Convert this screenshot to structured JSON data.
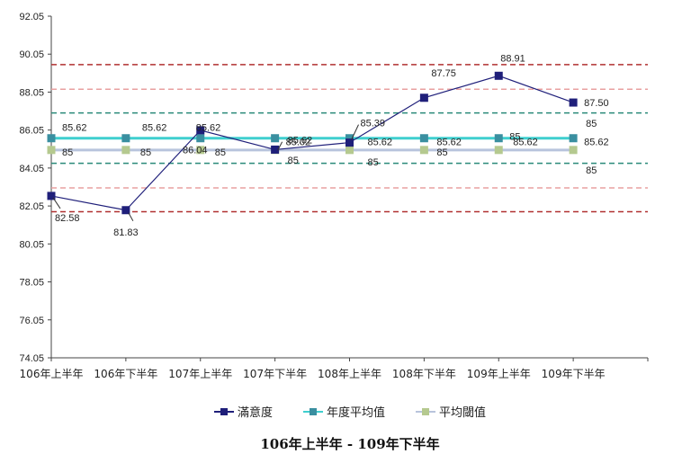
{
  "chart_data": {
    "type": "line",
    "categories": [
      "106年上半年",
      "106年下半年",
      "107年上半年",
      "107年下半年",
      "108年上半年",
      "108年下半年",
      "109年上半年",
      "109年下半年"
    ],
    "y_ticks": [
      "92.05",
      "90.05",
      "88.05",
      "86.05",
      "84.05",
      "82.05",
      "80.05",
      "78.05",
      "76.05",
      "74.05"
    ],
    "ylim": [
      74.05,
      92.05
    ],
    "series": [
      {
        "name": "滿意度",
        "values": [
          82.58,
          81.83,
          86.04,
          85.02,
          85.39,
          87.75,
          88.91,
          87.5
        ],
        "labels": [
          "82.58",
          "81.83",
          "86.04",
          "85.02",
          "85.39",
          "87.75",
          "88.91",
          "87.50"
        ],
        "color": "#1f1f7a",
        "marker": "square"
      },
      {
        "name": "年度平均值",
        "values": [
          85.62,
          85.62,
          85.62,
          85.62,
          85.62,
          85.62,
          85.62,
          85.62
        ],
        "labels": [
          "85.62",
          "85.62",
          "85.62",
          "85.62",
          "85.62",
          "85.62",
          "85.62",
          "85.62"
        ],
        "color": "#3fcfcf",
        "marker_color": "#3a8fa0",
        "marker": "square"
      },
      {
        "name": "平均閾值",
        "values": [
          85,
          85,
          85,
          85,
          85,
          85,
          85,
          85
        ],
        "labels": [
          "85",
          "85",
          "85",
          "85",
          "85",
          "85",
          "85",
          "85"
        ],
        "color": "#b8c4dc",
        "marker_color": "#b5c98f",
        "marker": "square"
      }
    ],
    "reference_lines": [
      {
        "value": 89.5,
        "color": "#b03030"
      },
      {
        "value": 88.2,
        "color": "#e8a0a0"
      },
      {
        "value": 86.95,
        "color": "#2a8a7a"
      },
      {
        "value": 84.3,
        "color": "#2a8a7a"
      },
      {
        "value": 83.0,
        "color": "#e8a0a0"
      },
      {
        "value": 81.75,
        "color": "#b03030"
      }
    ],
    "extra_labels": [
      "85"
    ],
    "grid": false,
    "legend_position": "bottom"
  },
  "footer_title": "106年上半年 - 109年下半年"
}
